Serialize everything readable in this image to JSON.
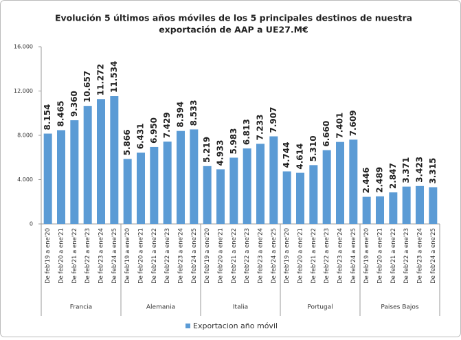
{
  "chart_data": {
    "type": "bar",
    "title": [
      "Evolución  5 últimos años móviles de los 5 principales  destinos de nuestra",
      "exportación de AAP a UE27.M€"
    ],
    "series": [
      {
        "name": "Exportacion año móvil",
        "color": "#5b9bd5"
      }
    ],
    "groups": [
      {
        "name": "Francia",
        "categories": [
          "De feb'19 a ene'20",
          "De feb'20 a ene'21",
          "De feb'21 a ene'22",
          "De feb'22 a ene'23",
          "De feb'23 a ene'24",
          "De feb'24 a ene'25"
        ],
        "values": [
          8154,
          8465,
          9360,
          10657,
          11272,
          11534
        ],
        "value_labels": [
          "8.154",
          "8.465",
          "9.360",
          "10.657",
          "11.272",
          "11.534"
        ]
      },
      {
        "name": "Alemania",
        "categories": [
          "De feb'19 a ene'20",
          "De feb'20 a ene'21",
          "De feb'21 a ene'22",
          "De feb'22 a ene'23",
          "De feb'23 a ene'24",
          "De feb'24 a ene'25"
        ],
        "values": [
          5866,
          6431,
          6950,
          7429,
          8394,
          8533
        ],
        "value_labels": [
          "5.866",
          "6.431",
          "6.950",
          "7.429",
          "8.394",
          "8.533"
        ]
      },
      {
        "name": "Italia",
        "categories": [
          "De feb'19 a ene'20",
          "De feb'20 a ene'21",
          "De feb'21 a ene'22",
          "De feb'22 a ene'23",
          "De feb'23 a ene'24",
          "De feb'24 a ene'25"
        ],
        "values": [
          5219,
          4933,
          5983,
          6813,
          7233,
          7907
        ],
        "value_labels": [
          "5.219",
          "4.933",
          "5.983",
          "6.813",
          "7.233",
          "7.907"
        ]
      },
      {
        "name": "Portugal",
        "categories": [
          "De feb'19 a ene'20",
          "De feb'20 a ene'21",
          "De feb'21 a ene'22",
          "De feb'22 a ene'23",
          "De feb'23 a ene'24",
          "De feb'24 a ene'25"
        ],
        "values": [
          4744,
          4614,
          5310,
          6660,
          7401,
          7609
        ],
        "value_labels": [
          "4.744",
          "4.614",
          "5.310",
          "6.660",
          "7.401",
          "7.609"
        ]
      },
      {
        "name": "Paises Bajos",
        "categories": [
          "De feb'19 a ene'20",
          "De feb'20 a ene'21",
          "De feb'21 a ene'22",
          "De feb'22 a ene'23",
          "De feb'23 a ene'24",
          "De feb'24 a ene'25"
        ],
        "values": [
          2446,
          2489,
          2847,
          3371,
          3423,
          3315
        ],
        "value_labels": [
          "2.446",
          "2.489",
          "2.847",
          "3.371",
          "3.423",
          "3.315"
        ]
      }
    ],
    "ylim": [
      0,
      16000
    ],
    "yticks": [
      0,
      {
        "value": 4000,
        "label": "4.000"
      },
      {
        "value": 8000,
        "label": "8.000"
      },
      {
        "value": 12000,
        "label": "12.000"
      },
      {
        "value": 16000,
        "label": "16.000"
      }
    ],
    "grid": false,
    "legend": "bottom"
  }
}
